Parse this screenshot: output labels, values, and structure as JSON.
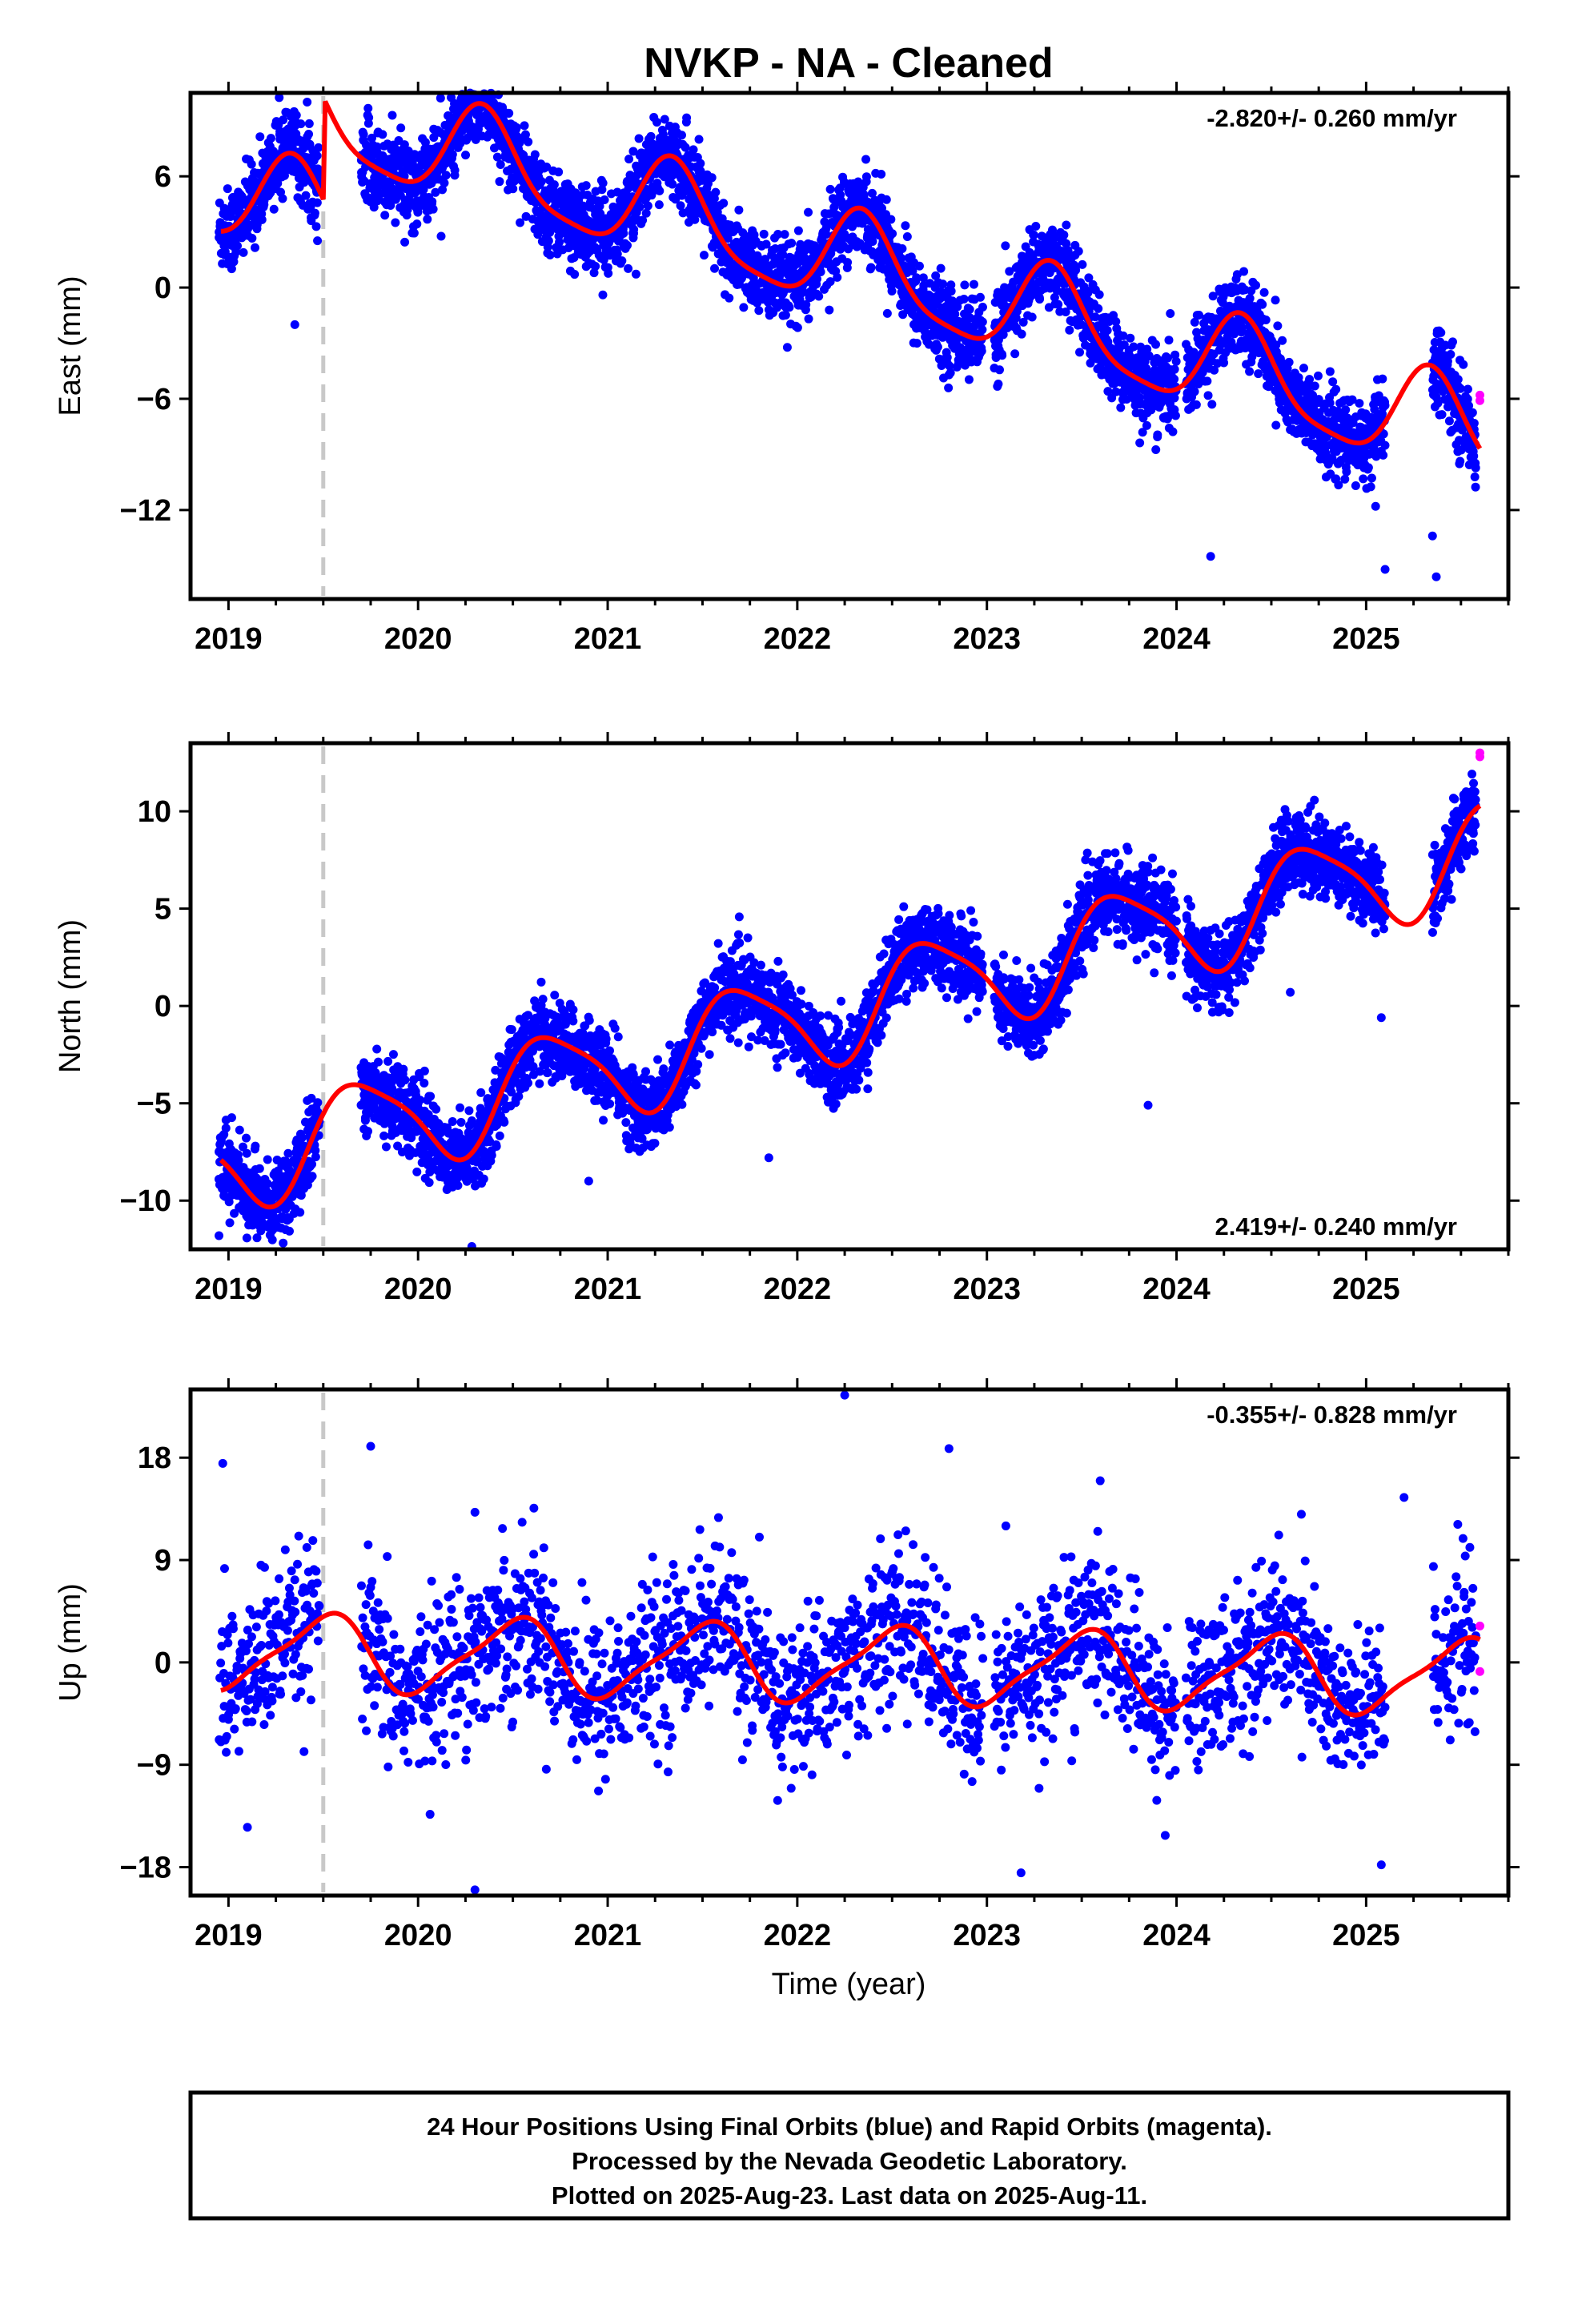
{
  "title": "NVKP  - NA - Cleaned",
  "xlabel": "Time (year)",
  "footer": {
    "line1": "24 Hour Positions Using Final Orbits (blue) and Rapid Orbits (magenta).",
    "line2": "Processed by the Nevada Geodetic Laboratory.",
    "line3": "Plotted on 2025-Aug-23. Last data on 2025-Aug-11."
  },
  "colors": {
    "final": "#0000ff",
    "rapid": "#ff00ff",
    "model": "#ff0000",
    "event": "#c8c8c8"
  },
  "chart_data": [
    {
      "type": "scatter",
      "component": "east",
      "ylabel": "East (mm)",
      "rate_text": "-2.820+/- 0.260 mm/yr",
      "xlim": [
        2018.8,
        2025.75
      ],
      "ylim": [
        -16.8,
        10.5
      ],
      "yticks": [
        6,
        0,
        -6,
        -12
      ],
      "ytick_labels": [
        "6",
        "0",
        "−6",
        "−12"
      ],
      "xticks": [
        2019,
        2020,
        2021,
        2022,
        2023,
        2024,
        2025
      ],
      "xtick_labels": [
        "2019",
        "2020",
        "2021",
        "2022",
        "2023",
        "2024",
        "2025"
      ],
      "event_line_x": 2019.5,
      "rate_mm_yr": -2.82,
      "seasonal": {
        "a1": 2.6,
        "p1": 0.9,
        "a2": 0.6,
        "p2": 0.3
      },
      "offsets": [
        [
          2019.5,
          5.5
        ]
      ],
      "intercept_2019": 5.0,
      "noise_sd": 1.1,
      "scatter_density": 3,
      "gaps": [
        [
          2019.48,
          2019.7
        ],
        [
          2022.98,
          2023.04
        ],
        [
          2024.0,
          2024.05
        ],
        [
          2025.1,
          2025.35
        ]
      ],
      "outliers": [
        [
          2024.18,
          -14.5
        ],
        [
          2025.1,
          -15.2
        ],
        [
          2025.37,
          -15.6
        ],
        [
          2025.35,
          -13.4
        ],
        [
          2025.05,
          -11.8
        ],
        [
          2019.35,
          -2.0
        ],
        [
          2022.25,
          5.6
        ],
        [
          2023.06,
          -5.2
        ]
      ],
      "series": [
        {
          "name": "Final Orbits",
          "color": "#0000ff",
          "range": [
            2018.95,
            2025.58
          ]
        },
        {
          "name": "Rapid Orbits",
          "color": "#ff00ff",
          "points": [
            [
              2025.6,
              -5.8
            ],
            [
              2025.6,
              -6.1
            ]
          ]
        }
      ]
    },
    {
      "type": "scatter",
      "component": "north",
      "ylabel": "North (mm)",
      "rate_text": "2.419+/- 0.240 mm/yr",
      "xlim": [
        2018.8,
        2025.75
      ],
      "ylim": [
        -12.5,
        13.5
      ],
      "yticks": [
        10,
        5,
        0,
        -5,
        -10
      ],
      "ytick_labels": [
        "10",
        "5",
        "0",
        "−5",
        "−10"
      ],
      "xticks": [
        2019,
        2020,
        2021,
        2022,
        2023,
        2024,
        2025
      ],
      "xtick_labels": [
        "2019",
        "2020",
        "2021",
        "2022",
        "2023",
        "2024",
        "2025"
      ],
      "event_line_x": 2019.5,
      "rate_mm_yr": 2.419,
      "seasonal": {
        "a1": 2.5,
        "p1": 0.55,
        "a2": 0.5,
        "p2": 0.1
      },
      "offsets": [],
      "intercept_2019": -8.0,
      "noise_sd": 1.0,
      "scatter_density": 3,
      "gaps": [
        [
          2019.48,
          2019.7
        ],
        [
          2022.98,
          2023.04
        ],
        [
          2024.0,
          2024.05
        ],
        [
          2025.1,
          2025.35
        ]
      ],
      "outliers": [
        [
          2023.85,
          -5.1
        ],
        [
          2020.9,
          -9.0
        ],
        [
          2021.85,
          -7.8
        ],
        [
          2024.6,
          0.7
        ],
        [
          2025.08,
          -0.6
        ],
        [
          2018.95,
          -11.8
        ]
      ],
      "series": [
        {
          "name": "Final Orbits",
          "color": "#0000ff",
          "range": [
            2018.95,
            2025.58
          ]
        },
        {
          "name": "Rapid Orbits",
          "color": "#ff00ff",
          "points": [
            [
              2025.6,
              13.0
            ],
            [
              2025.6,
              12.8
            ]
          ]
        }
      ]
    },
    {
      "type": "scatter",
      "component": "up",
      "ylabel": "Up (mm)",
      "rate_text": "-0.355+/- 0.828 mm/yr",
      "xlim": [
        2018.8,
        2025.75
      ],
      "ylim": [
        -20.5,
        24.0
      ],
      "yticks": [
        18,
        9,
        0,
        -9,
        -18
      ],
      "ytick_labels": [
        "18",
        "9",
        "0",
        "−9",
        "−18"
      ],
      "xticks": [
        2019,
        2020,
        2021,
        2022,
        2023,
        2024,
        2025
      ],
      "xtick_labels": [
        "2019",
        "2020",
        "2021",
        "2022",
        "2023",
        "2024",
        "2025"
      ],
      "event_line_x": 2019.5,
      "rate_mm_yr": -0.355,
      "seasonal": {
        "a1": 3.2,
        "p1": 0.75,
        "a2": 0.8,
        "p2": 0.5
      },
      "offsets": [],
      "intercept_2019": 1.0,
      "noise_sd": 3.5,
      "scatter_density": 2,
      "gaps": [
        [
          2019.48,
          2019.7
        ],
        [
          2022.98,
          2023.04
        ],
        [
          2024.0,
          2024.05
        ],
        [
          2025.1,
          2025.35
        ]
      ],
      "outliers": [
        [
          2022.25,
          23.5
        ],
        [
          2019.75,
          19.0
        ],
        [
          2022.8,
          18.8
        ],
        [
          2020.3,
          -20.0
        ],
        [
          2023.18,
          -18.5
        ],
        [
          2025.08,
          -17.8
        ],
        [
          2019.1,
          -14.5
        ],
        [
          2020.3,
          13.2
        ],
        [
          2025.2,
          14.5
        ],
        [
          2023.1,
          12.0
        ],
        [
          2018.97,
          17.5
        ]
      ],
      "series": [
        {
          "name": "Final Orbits",
          "color": "#0000ff",
          "range": [
            2018.95,
            2025.58
          ]
        },
        {
          "name": "Rapid Orbits",
          "color": "#ff00ff",
          "points": [
            [
              2025.6,
              3.2
            ],
            [
              2025.6,
              -0.8
            ]
          ]
        }
      ]
    }
  ]
}
